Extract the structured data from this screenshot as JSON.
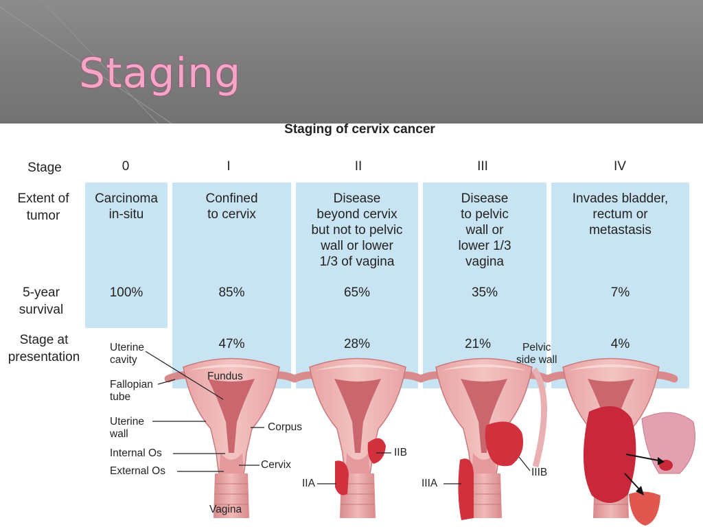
{
  "slide": {
    "title": "Staging"
  },
  "figure": {
    "title": "Staging of cervix cancer",
    "row_labels": {
      "stage": "Stage",
      "extent_line1": "Extent of",
      "extent_line2": "tumor",
      "survival_line1": "5-year",
      "survival_line2": "survival",
      "presentation_line1": "Stage at",
      "presentation_line2": "presentation"
    },
    "stages": [
      {
        "stage": "0",
        "extent": [
          "Carcinoma",
          "in-situ"
        ],
        "survival": "100%",
        "presentation": ""
      },
      {
        "stage": "I",
        "extent": [
          "Confined",
          "to cervix"
        ],
        "survival": "85%",
        "presentation": "47%"
      },
      {
        "stage": "II",
        "extent": [
          "Disease",
          "beyond cervix",
          "but not to pelvic",
          "wall or lower",
          "1/3 of vagina"
        ],
        "survival": "65%",
        "presentation": "28%"
      },
      {
        "stage": "III",
        "extent": [
          "Disease",
          "to pelvic",
          "wall or",
          "lower 1/3",
          "vagina"
        ],
        "survival": "35%",
        "presentation": "21%"
      },
      {
        "stage": "IV",
        "extent": [
          "Invades bladder,",
          "rectum or",
          "metastasis"
        ],
        "survival": "7%",
        "presentation": "4%"
      }
    ],
    "anatomy_labels": {
      "uterine_cavity": [
        "Uterine",
        "cavity"
      ],
      "fallopian_tube": [
        "Fallopian",
        "tube"
      ],
      "uterine_wall": [
        "Uterine",
        "wall"
      ],
      "internal_os": "Internal Os",
      "external_os": "External Os",
      "fundus": "Fundus",
      "corpus": "Corpus",
      "cervix": "Cervix",
      "vagina": "Vagina",
      "pelvic_side_wall": [
        "Pelvic",
        "side wall"
      ],
      "iia": "IIA",
      "iib": "IIB",
      "iiia": "IIIA",
      "iiib": "IIIB"
    },
    "colors": {
      "panel": "#c8e4f2",
      "tissue": "#e9a7a8",
      "tissue_dark": "#c9666e",
      "tumor": "#d0313d",
      "header": "#7f7f7f",
      "title": "#f2a7c6"
    }
  }
}
